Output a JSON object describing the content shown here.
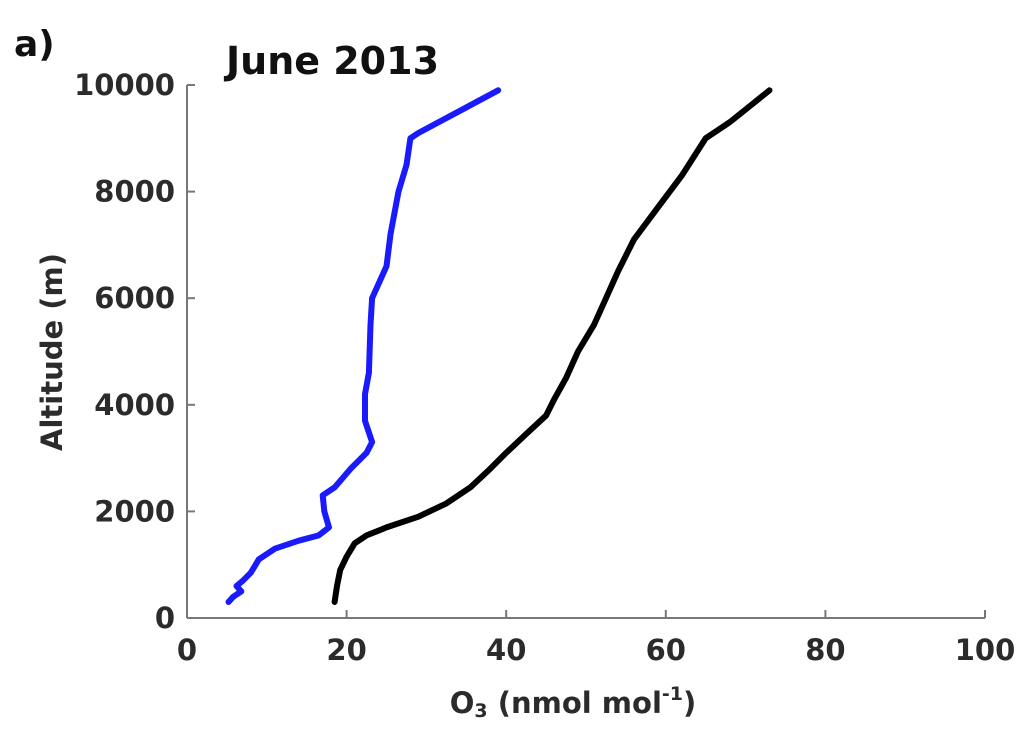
{
  "panel_label": "a)",
  "chart_data": {
    "type": "line",
    "title": "June 2013",
    "xlabel": "O₃ (nmol mol⁻¹)",
    "xlabel_parts": {
      "base": "O",
      "subscript": "3",
      "middle": " (nmol mol",
      "superscript": "-1",
      "end": ")"
    },
    "ylabel": "Altitude (m)",
    "xlim": [
      0,
      100
    ],
    "ylim": [
      0,
      10000
    ],
    "xticks": [
      0,
      20,
      40,
      60,
      80,
      100
    ],
    "yticks": [
      0,
      2000,
      4000,
      6000,
      8000,
      10000
    ],
    "grid": false,
    "series": [
      {
        "color": "#1a1aff",
        "x": [
          5.2,
          5.8,
          6.8,
          6.2,
          7.0,
          8.0,
          9.0,
          11.0,
          14.0,
          16.5,
          17.8,
          17.2,
          17.0,
          18.5,
          20.5,
          22.5,
          23.2,
          22.3,
          22.3,
          22.8,
          23.0,
          23.2,
          25.0,
          25.5,
          26.5,
          27.5,
          28.0,
          29.0,
          34.0,
          39.0
        ],
        "y": [
          300,
          400,
          500,
          600,
          700,
          850,
          1100,
          1300,
          1450,
          1550,
          1700,
          2000,
          2300,
          2450,
          2800,
          3100,
          3300,
          3700,
          4200,
          4600,
          5500,
          6000,
          6600,
          7200,
          8000,
          8500,
          9000,
          9100,
          9500,
          9900
        ]
      },
      {
        "color": "#000000",
        "x": [
          18.5,
          18.8,
          19.2,
          20.0,
          21.0,
          22.5,
          25.0,
          29.0,
          32.5,
          35.5,
          38.0,
          40.0,
          42.5,
          45.0,
          46.0,
          47.5,
          49.0,
          51.0,
          52.5,
          54.0,
          56.0,
          59.0,
          62.0,
          65.0,
          68.0,
          70.5,
          73.0
        ],
        "y": [
          300,
          600,
          900,
          1150,
          1400,
          1550,
          1700,
          1900,
          2150,
          2450,
          2800,
          3100,
          3450,
          3800,
          4100,
          4500,
          5000,
          5500,
          6000,
          6500,
          7100,
          7700,
          8300,
          9000,
          9300,
          9600,
          9900
        ]
      }
    ]
  }
}
